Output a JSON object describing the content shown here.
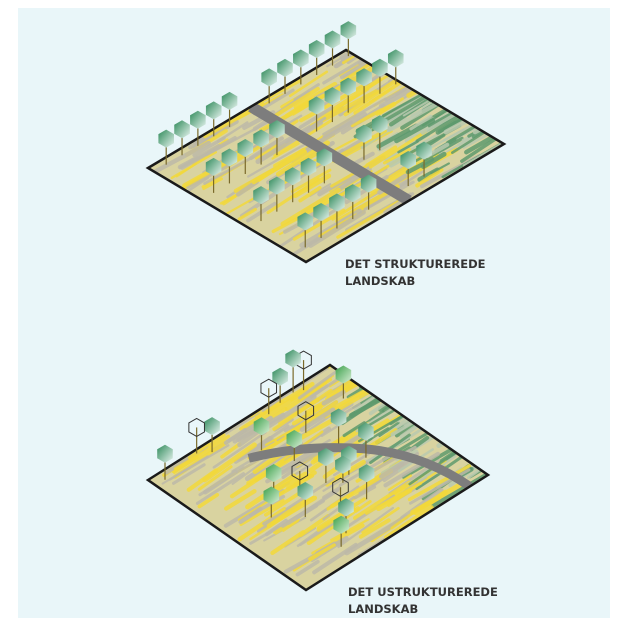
{
  "diagrams": [
    {
      "label": [
        "DET STRUKTUREREDE",
        "LANDSKAB"
      ]
    },
    {
      "label": [
        "DET USTRUKTUREREDE",
        "LANDSKAB"
      ]
    }
  ]
}
